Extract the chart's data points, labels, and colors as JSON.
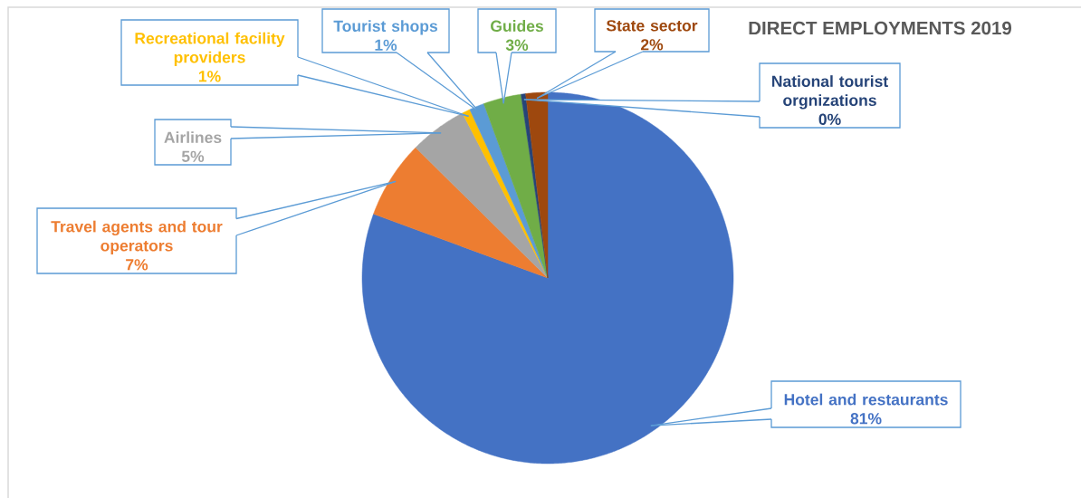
{
  "chart_data": {
    "type": "pie",
    "title": "DIRECT EMPLOYMENTS 2019",
    "categories": [
      "Hotel and restaurants",
      "Travel agents and tour operators",
      "Airlines",
      "Recreational facility providers",
      "Tourist shops",
      "Guides",
      "National tourist orgnizations",
      "State sector"
    ],
    "values": [
      80.6,
      6.8,
      5.0,
      0.7,
      1.3,
      3.3,
      0.4,
      1.9
    ],
    "value_labels": [
      "81%",
      "7%",
      "5%",
      "1%",
      "1%",
      "3%",
      "0%",
      "2%"
    ],
    "colors": [
      "#4472c4",
      "#ed7d31",
      "#a5a5a5",
      "#ffc000",
      "#5b9bd5",
      "#70ad47",
      "#264478",
      "#9e480e"
    ]
  }
}
